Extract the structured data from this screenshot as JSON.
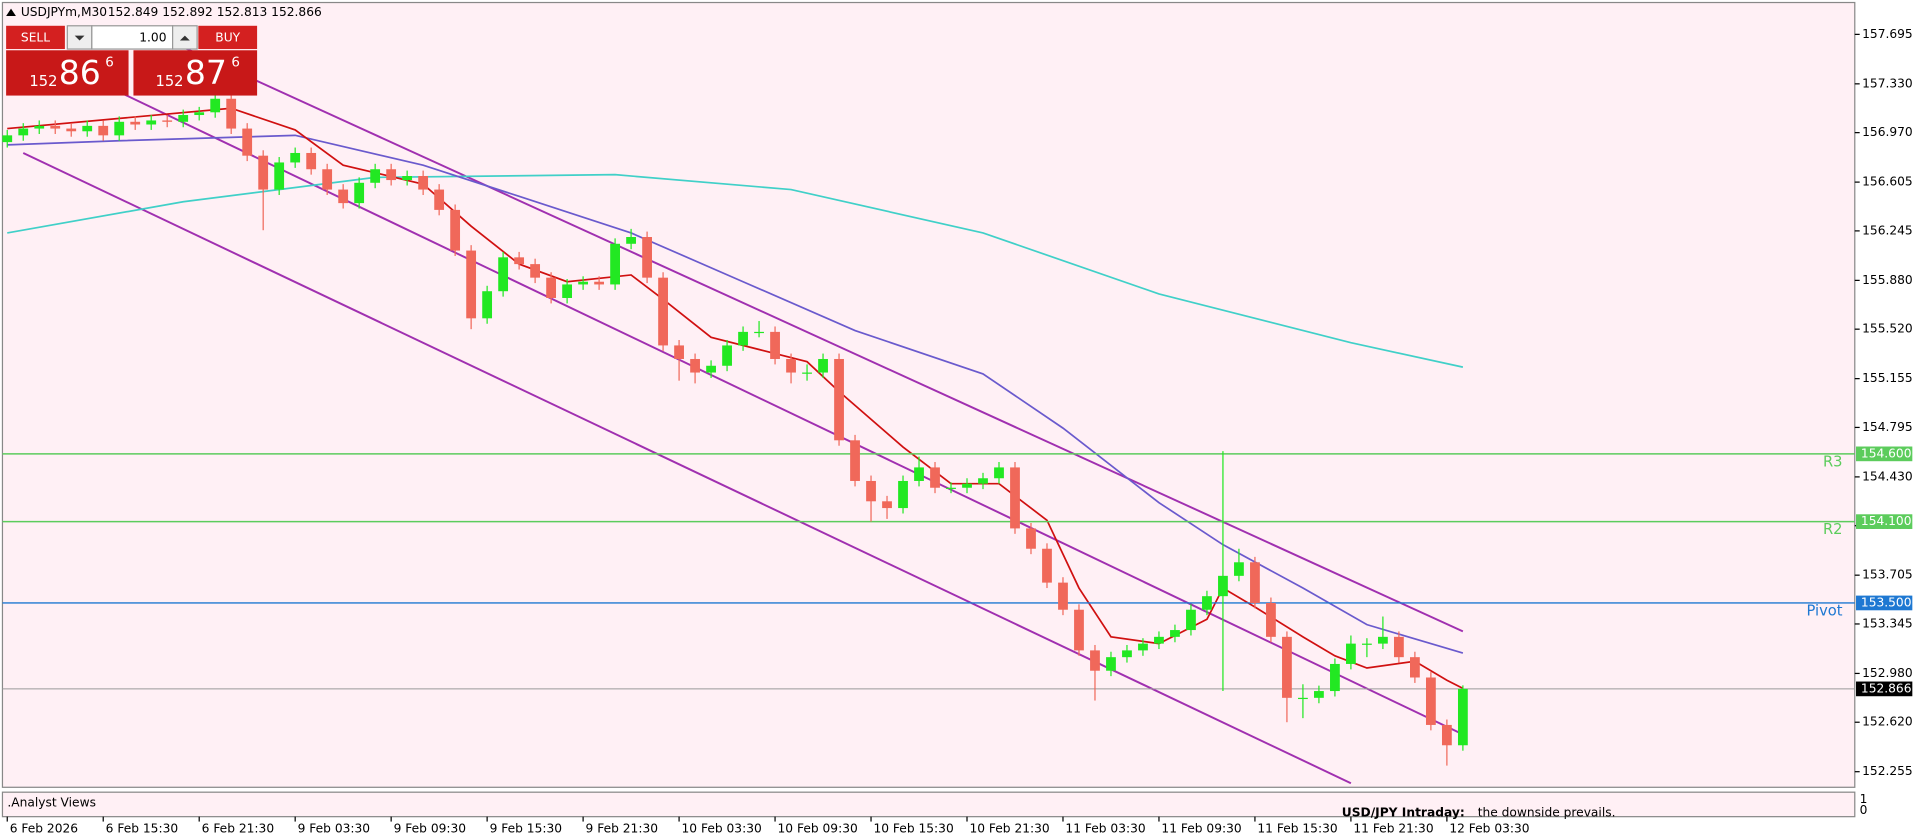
{
  "header": {
    "symbol": "USDJPYm,M30",
    "quote": "152.849 152.892 152.813 152.866"
  },
  "trade_panel": {
    "sell": "SELL",
    "buy": "BUY",
    "volume": "1.00",
    "bid": {
      "big": "152",
      "main": "86",
      "small": "6"
    },
    "ask": {
      "big": "152",
      "main": "87",
      "small": "6"
    }
  },
  "chart_data": {
    "type": "candlestick",
    "colors": {
      "up": "#22e822",
      "down": "#f0685a"
    },
    "ylim": [
      152.14,
      157.93
    ],
    "yticks": [
      157.695,
      {
        "value": 157.33,
        "label": "157.330"
      },
      {
        "value": 156.97,
        "label": "156.970"
      },
      156.605,
      156.245,
      {
        "value": 155.88,
        "label": "155.880"
      },
      {
        "value": 155.52,
        "label": "155.520"
      },
      155.155,
      154.795,
      {
        "value": 154.43,
        "label": "154.430"
      },
      {
        "value": 154.07,
        "label": "154.070"
      },
      153.705,
      153.345,
      {
        "value": 152.98,
        "label": "152.980"
      },
      {
        "value": 152.62,
        "label": "152.620"
      },
      152.255
    ],
    "xlim": [
      -0.3,
      115.5
    ],
    "xticks": [
      {
        "value": 0,
        "label": "6 Feb 2026"
      },
      {
        "value": 6,
        "label": "6 Feb 15:30"
      },
      {
        "value": 12,
        "label": "6 Feb 21:30"
      },
      {
        "value": 18,
        "label": "9 Feb 03:30"
      },
      {
        "value": 24,
        "label": "9 Feb 09:30"
      },
      {
        "value": 30,
        "label": "9 Feb 15:30"
      },
      {
        "value": 36,
        "label": "9 Feb 21:30"
      },
      {
        "value": 42,
        "label": "10 Feb 03:30"
      },
      {
        "value": 48,
        "label": "10 Feb 09:30"
      },
      {
        "value": 54,
        "label": "10 Feb 15:30"
      },
      {
        "value": 60,
        "label": "10 Feb 21:30"
      },
      {
        "value": 66,
        "label": "11 Feb 03:30"
      },
      {
        "value": 72,
        "label": "11 Feb 09:30"
      },
      {
        "value": 78,
        "label": "11 Feb 15:30"
      },
      {
        "value": 84,
        "label": "11 Feb 21:30"
      },
      {
        "value": 90,
        "label": "12 Feb 03:30"
      }
    ],
    "ohlc": [
      [
        156.9,
        156.99,
        156.86,
        156.95
      ],
      [
        156.95,
        157.04,
        156.91,
        157.0
      ],
      [
        157.0,
        157.06,
        156.96,
        157.02
      ],
      [
        157.02,
        157.06,
        156.96,
        157.0
      ],
      [
        157.0,
        157.04,
        156.94,
        156.98
      ],
      [
        156.98,
        157.06,
        156.94,
        157.02
      ],
      [
        157.02,
        157.06,
        156.91,
        156.95
      ],
      [
        156.95,
        157.09,
        156.91,
        157.05
      ],
      [
        157.05,
        157.09,
        156.99,
        157.03
      ],
      [
        157.03,
        157.1,
        156.99,
        157.06
      ],
      [
        157.06,
        157.1,
        157.01,
        157.05
      ],
      [
        157.05,
        157.14,
        157.01,
        157.1
      ],
      [
        157.1,
        157.16,
        157.06,
        157.12
      ],
      [
        157.12,
        157.28,
        157.08,
        157.22
      ],
      [
        157.22,
        157.26,
        156.96,
        157.0
      ],
      [
        157.0,
        157.04,
        156.76,
        156.8
      ],
      [
        156.8,
        156.84,
        156.25,
        156.55
      ],
      [
        156.55,
        156.79,
        156.51,
        156.75
      ],
      [
        156.75,
        156.86,
        156.71,
        156.82
      ],
      [
        156.82,
        156.86,
        156.66,
        156.7
      ],
      [
        156.7,
        156.74,
        156.51,
        156.55
      ],
      [
        156.55,
        156.59,
        156.41,
        156.45
      ],
      [
        156.45,
        156.64,
        156.41,
        156.6
      ],
      [
        156.6,
        156.74,
        156.56,
        156.7
      ],
      [
        156.7,
        156.74,
        156.58,
        156.62
      ],
      [
        156.62,
        156.69,
        156.58,
        156.65
      ],
      [
        156.65,
        156.69,
        156.51,
        156.55
      ],
      [
        156.55,
        156.59,
        156.36,
        156.4
      ],
      [
        156.4,
        156.44,
        156.06,
        156.1
      ],
      [
        156.1,
        156.14,
        155.52,
        155.6
      ],
      [
        155.6,
        155.84,
        155.56,
        155.8
      ],
      [
        155.8,
        156.09,
        155.76,
        156.05
      ],
      [
        156.05,
        156.09,
        155.96,
        156.0
      ],
      [
        156.0,
        156.04,
        155.86,
        155.9
      ],
      [
        155.9,
        155.94,
        155.71,
        155.75
      ],
      [
        155.75,
        155.89,
        155.71,
        155.85
      ],
      [
        155.85,
        155.91,
        155.81,
        155.87
      ],
      [
        155.87,
        155.91,
        155.81,
        155.85
      ],
      [
        155.85,
        156.19,
        155.81,
        156.15
      ],
      [
        156.15,
        156.26,
        156.11,
        156.2
      ],
      [
        156.2,
        156.24,
        155.86,
        155.9
      ],
      [
        155.9,
        155.94,
        155.36,
        155.4
      ],
      [
        155.4,
        155.44,
        155.14,
        155.3
      ],
      [
        155.3,
        155.34,
        155.12,
        155.2
      ],
      [
        155.2,
        155.29,
        155.16,
        155.25
      ],
      [
        155.25,
        155.44,
        155.21,
        155.4
      ],
      [
        155.4,
        155.54,
        155.36,
        155.5
      ],
      [
        155.5,
        155.58,
        155.46,
        155.5
      ],
      [
        155.5,
        155.54,
        155.26,
        155.3
      ],
      [
        155.3,
        155.34,
        155.12,
        155.2
      ],
      [
        155.2,
        155.26,
        155.14,
        155.2
      ],
      [
        155.2,
        155.34,
        155.16,
        155.3
      ],
      [
        155.3,
        155.34,
        154.66,
        154.7
      ],
      [
        154.7,
        154.74,
        154.36,
        154.4
      ],
      [
        154.4,
        154.44,
        154.1,
        154.25
      ],
      [
        154.25,
        154.29,
        154.12,
        154.2
      ],
      [
        154.2,
        154.44,
        154.16,
        154.4
      ],
      [
        154.4,
        154.58,
        154.36,
        154.5
      ],
      [
        154.5,
        154.54,
        154.31,
        154.35
      ],
      [
        154.35,
        154.39,
        154.31,
        154.35
      ],
      [
        154.35,
        154.42,
        154.31,
        154.38
      ],
      [
        154.38,
        154.46,
        154.34,
        154.42
      ],
      [
        154.42,
        154.54,
        154.38,
        154.5
      ],
      [
        154.5,
        154.54,
        154.01,
        154.05
      ],
      [
        154.05,
        154.09,
        153.86,
        153.9
      ],
      [
        153.9,
        153.94,
        153.61,
        153.65
      ],
      [
        153.65,
        153.69,
        153.41,
        153.45
      ],
      [
        153.45,
        153.49,
        153.11,
        153.15
      ],
      [
        153.15,
        153.19,
        152.78,
        153.0
      ],
      [
        153.0,
        153.14,
        152.96,
        153.1
      ],
      [
        153.1,
        153.19,
        153.06,
        153.15
      ],
      [
        153.15,
        153.24,
        153.11,
        153.2
      ],
      [
        153.2,
        153.29,
        153.16,
        153.25
      ],
      [
        153.25,
        153.34,
        153.21,
        153.3
      ],
      [
        153.3,
        153.49,
        153.26,
        153.45
      ],
      [
        153.45,
        153.59,
        153.41,
        153.55
      ],
      [
        153.55,
        154.62,
        152.85,
        153.7
      ],
      [
        153.7,
        153.9,
        153.66,
        153.8
      ],
      [
        153.8,
        153.84,
        153.46,
        153.5
      ],
      [
        153.5,
        153.54,
        153.21,
        153.25
      ],
      [
        153.25,
        153.29,
        152.62,
        152.8
      ],
      [
        152.8,
        152.9,
        152.65,
        152.8
      ],
      [
        152.8,
        152.89,
        152.76,
        152.85
      ],
      [
        152.85,
        153.09,
        152.81,
        153.05
      ],
      [
        153.05,
        153.26,
        153.01,
        153.2
      ],
      [
        153.2,
        153.24,
        153.1,
        153.2
      ],
      [
        153.2,
        153.4,
        153.16,
        153.25
      ],
      [
        153.25,
        153.29,
        153.06,
        153.1
      ],
      [
        153.1,
        153.14,
        152.91,
        152.95
      ],
      [
        152.95,
        152.99,
        152.56,
        152.6
      ],
      [
        152.6,
        152.64,
        152.3,
        152.45
      ],
      [
        152.45,
        152.892,
        152.41,
        152.866
      ]
    ],
    "moving_averages": [
      {
        "color": "#40d0c8",
        "x": [
          0,
          11,
          23,
          38,
          49,
          61,
          72,
          84,
          91
        ],
        "values": [
          156.23,
          156.46,
          156.64,
          156.66,
          156.55,
          156.23,
          155.78,
          155.42,
          155.24
        ]
      },
      {
        "color": "#6a5acd",
        "x": [
          0,
          7,
          18,
          26,
          32,
          39,
          46,
          53,
          61,
          66,
          72,
          76,
          81,
          85,
          91
        ],
        "values": [
          156.88,
          156.91,
          156.95,
          156.73,
          156.5,
          156.23,
          155.87,
          155.51,
          155.19,
          154.79,
          154.24,
          153.93,
          153.61,
          153.34,
          153.13
        ]
      },
      {
        "color": "#d01010",
        "x": [
          0,
          14,
          18,
          21,
          26,
          29,
          32,
          35,
          39,
          41,
          44,
          47,
          50,
          52,
          56,
          59,
          62,
          65,
          67,
          69,
          72,
          75,
          76,
          78,
          81,
          83,
          85,
          88,
          90,
          91
        ],
        "values": [
          157.0,
          157.15,
          156.99,
          156.73,
          156.59,
          156.28,
          156.0,
          155.87,
          155.92,
          155.74,
          155.46,
          155.37,
          155.28,
          155.06,
          154.65,
          154.38,
          154.38,
          154.11,
          153.61,
          153.25,
          153.2,
          153.38,
          153.61,
          153.47,
          153.25,
          153.11,
          153.02,
          153.07,
          152.93,
          152.87
        ]
      }
    ],
    "channels": [
      {
        "color": "#a030b0",
        "x": [
          11,
          91
        ],
        "values": [
          157.6,
          153.29
        ]
      },
      {
        "color": "#a030b0",
        "x": [
          7,
          91
        ],
        "values": [
          157.27,
          152.53
        ]
      },
      {
        "color": "#a030b0",
        "x": [
          1,
          84
        ],
        "values": [
          156.82,
          152.17
        ]
      }
    ],
    "levels": [
      {
        "label": "R3",
        "value": 154.6,
        "value_label": "154.600",
        "color": "#5ccc5c"
      },
      {
        "label": "R2",
        "value": 154.1,
        "value_label": "154.100",
        "color": "#5ccc5c"
      },
      {
        "label": "Pivot",
        "value": 153.5,
        "value_label": "153.500",
        "color": "#1e78d2"
      }
    ],
    "current_price": {
      "value": 152.866,
      "value_label": "152.866"
    }
  },
  "indicator_panel": {
    "title": ".Analyst Views",
    "headline": "USD/JPY Intraday:",
    "text": "the downside prevails.",
    "yticks": [
      1,
      0
    ]
  }
}
